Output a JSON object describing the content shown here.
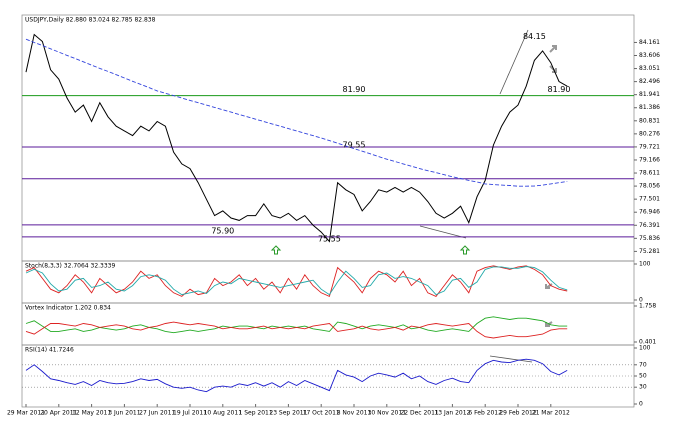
{
  "chart_data": [
    {
      "type": "line",
      "title": "USDJPY,Daily  82.880 83.024 82.785 82.838",
      "categories": [
        "29 Mar 2011",
        null,
        null,
        null,
        "20 Apr 2011",
        null,
        null,
        null,
        "12 May 2011",
        null,
        null,
        null,
        "3 Jun 2011",
        null,
        null,
        null,
        "27 Jun 2011",
        null,
        null,
        null,
        "19 Jul 2011",
        null,
        null,
        null,
        "10 Aug 2011",
        null,
        null,
        null,
        "1 Sep 2011",
        null,
        null,
        null,
        "23 Sep 2011",
        null,
        null,
        null,
        "17 Oct 2011",
        null,
        null,
        null,
        "8 Nov 2011",
        null,
        null,
        null,
        "30 Nov 2011",
        null,
        null,
        null,
        "22 Dec 2011",
        null,
        null,
        null,
        "13 Jan 2012",
        null,
        null,
        null,
        "6 Feb 2012",
        null,
        null,
        null,
        "29 Feb 2012",
        null,
        null,
        null,
        "21 Mar 2012",
        null,
        null
      ],
      "series": [
        {
          "color": "#000000",
          "values": [
            82.9,
            84.5,
            84.2,
            83.0,
            82.6,
            81.8,
            81.2,
            81.5,
            80.8,
            81.6,
            81.0,
            80.6,
            80.4,
            80.2,
            80.6,
            80.4,
            80.8,
            80.6,
            79.5,
            79.0,
            78.8,
            78.2,
            77.5,
            76.8,
            77.0,
            76.7,
            76.6,
            76.8,
            76.8,
            77.3,
            76.8,
            76.7,
            76.9,
            76.6,
            76.8,
            76.4,
            76.1,
            75.7,
            78.2,
            77.9,
            77.7,
            77.0,
            77.4,
            77.9,
            77.8,
            78.0,
            77.8,
            78.0,
            77.8,
            77.4,
            76.9,
            76.7,
            76.9,
            77.2,
            76.5,
            77.6,
            78.3,
            79.8,
            80.6,
            81.2,
            81.5,
            82.3,
            83.4,
            83.8,
            83.3,
            82.5,
            82.3
          ]
        },
        {
          "color": "#3344dd",
          "dash": true,
          "values": [
            84.3,
            84.16,
            84.03,
            83.89,
            83.75,
            83.61,
            83.48,
            83.34,
            83.2,
            83.06,
            82.93,
            82.79,
            82.65,
            82.51,
            82.38,
            82.24,
            82.1,
            82.0,
            81.9,
            81.8,
            81.7,
            81.6,
            81.5,
            81.4,
            81.3,
            81.2,
            81.1,
            81.0,
            80.9,
            80.8,
            80.7,
            80.6,
            80.5,
            80.4,
            80.3,
            80.2,
            80.1,
            79.99,
            79.88,
            79.76,
            79.65,
            79.54,
            79.43,
            79.31,
            79.2,
            79.1,
            79.0,
            78.9,
            78.8,
            78.71,
            78.63,
            78.54,
            78.45,
            78.38,
            78.3,
            78.23,
            78.15,
            78.12,
            78.1,
            78.08,
            78.05,
            78.05,
            78.06,
            78.1,
            78.15,
            78.2,
            78.25
          ]
        }
      ],
      "ylim": [
        75.0,
        85.2
      ],
      "yticks": [
        75.281,
        75.836,
        76.391,
        76.946,
        77.501,
        78.056,
        78.611,
        79.166,
        79.721,
        80.276,
        80.831,
        81.386,
        81.941,
        82.496,
        83.051,
        83.606,
        84.161
      ],
      "levels": [
        {
          "value": 81.9,
          "color": "#1a9a1a"
        },
        {
          "value": 79.72,
          "color": "#5a1a9a"
        },
        {
          "value": 78.37,
          "color": "#5a1a9a"
        },
        {
          "value": 76.41,
          "color": "#5a1a9a"
        },
        {
          "value": 75.9,
          "color": "#5a1a9a"
        }
      ],
      "annotations": [
        {
          "text": "84.15",
          "value": 84.15,
          "x": 62,
          "color": "#777777"
        },
        {
          "text": "81.90",
          "value": 81.9,
          "x": 40,
          "color": "#1a9a1a"
        },
        {
          "text": "81.90",
          "value": 81.9,
          "x": 65,
          "color": "#cc2222"
        },
        {
          "text": "79.55",
          "value": 79.55,
          "x": 40,
          "color": "#3344dd"
        },
        {
          "text": "75.90",
          "value": 75.9,
          "x": 24,
          "color": "#1a9a1a"
        },
        {
          "text": "75.55",
          "value": 75.55,
          "x": 37,
          "color": "#1a9a1a"
        }
      ]
    },
    {
      "type": "line",
      "title": "Stoch(8,3,3) 32.7064 32.3339",
      "ylim": [
        0,
        100
      ],
      "yticks": [
        100,
        0
      ],
      "series": [
        {
          "color": "#dd2222",
          "values": [
            80,
            90,
            60,
            30,
            20,
            40,
            70,
            50,
            20,
            60,
            40,
            20,
            30,
            50,
            80,
            60,
            70,
            40,
            20,
            10,
            30,
            15,
            20,
            60,
            40,
            50,
            70,
            40,
            60,
            30,
            50,
            20,
            60,
            30,
            70,
            40,
            20,
            10,
            90,
            70,
            50,
            20,
            60,
            80,
            70,
            50,
            80,
            40,
            60,
            20,
            10,
            40,
            70,
            50,
            20,
            80,
            90,
            95,
            90,
            85,
            92,
            95,
            85,
            70,
            40,
            30,
            25
          ]
        },
        {
          "color": "#22aaaa",
          "values": [
            75,
            85,
            75,
            45,
            25,
            30,
            55,
            60,
            35,
            40,
            50,
            30,
            25,
            40,
            65,
            70,
            65,
            55,
            30,
            15,
            20,
            25,
            18,
            40,
            50,
            45,
            60,
            55,
            50,
            45,
            40,
            35,
            40,
            45,
            50,
            55,
            30,
            15,
            50,
            80,
            60,
            35,
            40,
            70,
            75,
            60,
            65,
            60,
            50,
            40,
            15,
            25,
            55,
            60,
            35,
            50,
            85,
            92,
            92,
            88,
            88,
            93,
            90,
            78,
            55,
            35,
            28
          ]
        }
      ]
    },
    {
      "type": "line",
      "title": "Vortex Indicator 1.202 0.834",
      "ylim": [
        0.401,
        1.758
      ],
      "yticks": [
        1.758,
        0.401
      ],
      "series": [
        {
          "color": "#22aa22",
          "values": [
            1.1,
            1.2,
            1.0,
            0.8,
            0.8,
            0.85,
            0.9,
            0.8,
            0.85,
            0.95,
            0.9,
            0.85,
            0.9,
            1.0,
            1.05,
            0.95,
            0.9,
            0.8,
            0.75,
            0.8,
            0.85,
            0.8,
            0.85,
            0.9,
            1.0,
            0.95,
            1.0,
            1.0,
            0.95,
            0.9,
            1.0,
            0.95,
            1.0,
            0.95,
            1.0,
            0.9,
            0.85,
            0.8,
            1.15,
            1.1,
            1.0,
            0.9,
            1.0,
            1.05,
            1.0,
            0.95,
            1.05,
            0.9,
            0.95,
            0.85,
            0.8,
            0.85,
            0.9,
            0.85,
            0.8,
            1.1,
            1.3,
            1.35,
            1.3,
            1.25,
            1.3,
            1.3,
            1.25,
            1.2,
            1.05,
            1.0,
            1.0
          ]
        },
        {
          "color": "#dd2222",
          "values": [
            0.8,
            0.7,
            0.9,
            1.1,
            1.1,
            1.05,
            1.0,
            1.1,
            1.05,
            0.95,
            1.0,
            1.05,
            1.0,
            0.9,
            0.85,
            0.95,
            1.0,
            1.1,
            1.15,
            1.1,
            1.05,
            1.1,
            1.05,
            1.0,
            0.9,
            0.95,
            0.9,
            0.9,
            0.95,
            1.0,
            0.9,
            0.95,
            0.9,
            0.95,
            0.9,
            1.0,
            1.05,
            1.1,
            0.8,
            0.85,
            0.9,
            1.0,
            0.9,
            0.85,
            0.9,
            0.95,
            0.85,
            1.0,
            0.95,
            1.05,
            1.1,
            1.05,
            1.0,
            1.05,
            1.1,
            0.8,
            0.6,
            0.55,
            0.6,
            0.65,
            0.6,
            0.6,
            0.65,
            0.7,
            0.85,
            0.9,
            0.9
          ]
        }
      ]
    },
    {
      "type": "line",
      "title": "RSI(14) 41.7246",
      "ylim": [
        0,
        100
      ],
      "yticks": [
        100,
        70,
        50,
        30,
        0
      ],
      "series": [
        {
          "color": "#1a1acc",
          "values": [
            60,
            70,
            58,
            45,
            42,
            38,
            35,
            40,
            33,
            42,
            38,
            36,
            37,
            40,
            45,
            42,
            44,
            36,
            30,
            28,
            30,
            25,
            22,
            30,
            32,
            30,
            36,
            33,
            38,
            32,
            38,
            30,
            40,
            33,
            42,
            36,
            30,
            24,
            60,
            52,
            48,
            40,
            50,
            55,
            52,
            48,
            55,
            45,
            50,
            40,
            35,
            42,
            46,
            40,
            38,
            60,
            72,
            78,
            75,
            74,
            78,
            80,
            78,
            72,
            58,
            52,
            60
          ]
        }
      ]
    }
  ]
}
